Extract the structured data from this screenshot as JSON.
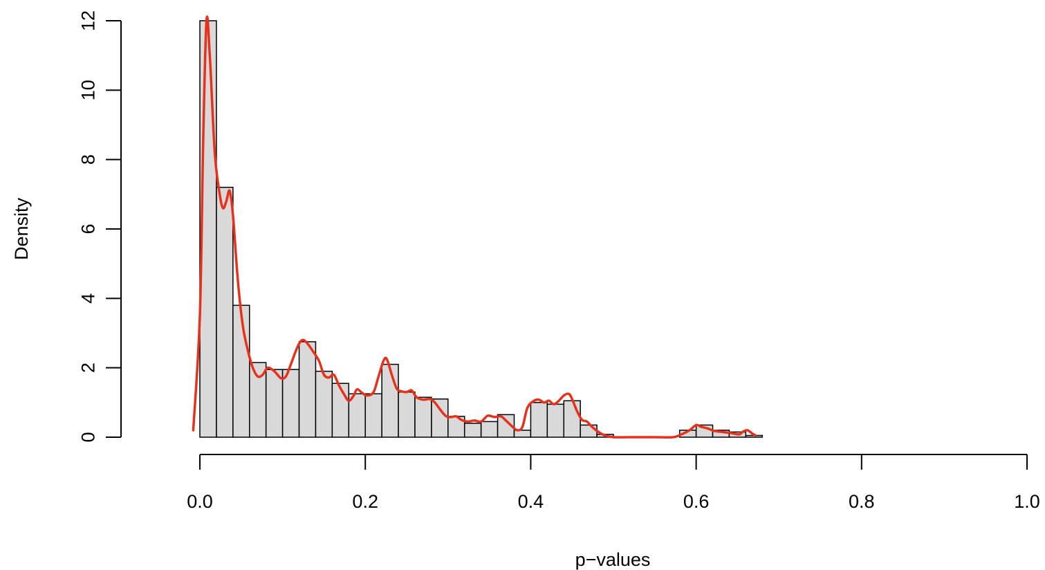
{
  "chart_data": {
    "type": "histogram",
    "title": "",
    "xlabel": "p−values",
    "ylabel": "Density",
    "xlim": [
      0,
      1
    ],
    "ylim": [
      0,
      12
    ],
    "grid": false,
    "x_ticks": [
      "0.0",
      "0.2",
      "0.4",
      "0.6",
      "0.8",
      "1.0"
    ],
    "y_ticks": [
      "0",
      "2",
      "4",
      "6",
      "8",
      "10",
      "12"
    ],
    "bin_width": 0.02,
    "bins": [
      {
        "x0": 0.0,
        "x1": 0.02,
        "density": 12.0
      },
      {
        "x0": 0.02,
        "x1": 0.04,
        "density": 7.2
      },
      {
        "x0": 0.04,
        "x1": 0.06,
        "density": 3.8
      },
      {
        "x0": 0.06,
        "x1": 0.08,
        "density": 2.15
      },
      {
        "x0": 0.08,
        "x1": 0.1,
        "density": 1.95
      },
      {
        "x0": 0.1,
        "x1": 0.12,
        "density": 1.95
      },
      {
        "x0": 0.12,
        "x1": 0.14,
        "density": 2.75
      },
      {
        "x0": 0.14,
        "x1": 0.16,
        "density": 1.9
      },
      {
        "x0": 0.16,
        "x1": 0.18,
        "density": 1.55
      },
      {
        "x0": 0.18,
        "x1": 0.2,
        "density": 1.25
      },
      {
        "x0": 0.2,
        "x1": 0.22,
        "density": 1.25
      },
      {
        "x0": 0.22,
        "x1": 0.24,
        "density": 2.1
      },
      {
        "x0": 0.24,
        "x1": 0.26,
        "density": 1.3
      },
      {
        "x0": 0.26,
        "x1": 0.28,
        "density": 1.15
      },
      {
        "x0": 0.28,
        "x1": 0.3,
        "density": 1.1
      },
      {
        "x0": 0.3,
        "x1": 0.32,
        "density": 0.6
      },
      {
        "x0": 0.32,
        "x1": 0.34,
        "density": 0.4
      },
      {
        "x0": 0.34,
        "x1": 0.36,
        "density": 0.45
      },
      {
        "x0": 0.36,
        "x1": 0.38,
        "density": 0.65
      },
      {
        "x0": 0.38,
        "x1": 0.4,
        "density": 0.2
      },
      {
        "x0": 0.4,
        "x1": 0.42,
        "density": 1.0
      },
      {
        "x0": 0.42,
        "x1": 0.44,
        "density": 0.95
      },
      {
        "x0": 0.44,
        "x1": 0.46,
        "density": 1.05
      },
      {
        "x0": 0.46,
        "x1": 0.48,
        "density": 0.35
      },
      {
        "x0": 0.48,
        "x1": 0.5,
        "density": 0.08
      },
      {
        "x0": 0.5,
        "x1": 0.52,
        "density": 0
      },
      {
        "x0": 0.52,
        "x1": 0.54,
        "density": 0
      },
      {
        "x0": 0.54,
        "x1": 0.56,
        "density": 0
      },
      {
        "x0": 0.56,
        "x1": 0.58,
        "density": 0
      },
      {
        "x0": 0.58,
        "x1": 0.6,
        "density": 0.2
      },
      {
        "x0": 0.6,
        "x1": 0.62,
        "density": 0.35
      },
      {
        "x0": 0.62,
        "x1": 0.64,
        "density": 0.2
      },
      {
        "x0": 0.64,
        "x1": 0.66,
        "density": 0.15
      },
      {
        "x0": 0.66,
        "x1": 0.68,
        "density": 0.05
      }
    ],
    "bar_color": "#d9d9d9",
    "bar_edge_color": "#000000",
    "density_curve": {
      "color": "#e8311a",
      "x": [
        -0.008,
        0.0,
        0.004,
        0.008,
        0.012,
        0.018,
        0.024,
        0.028,
        0.032,
        0.036,
        0.04,
        0.046,
        0.052,
        0.058,
        0.064,
        0.07,
        0.076,
        0.082,
        0.09,
        0.098,
        0.104,
        0.11,
        0.118,
        0.124,
        0.13,
        0.136,
        0.144,
        0.15,
        0.156,
        0.162,
        0.168,
        0.174,
        0.18,
        0.186,
        0.19,
        0.196,
        0.202,
        0.21,
        0.216,
        0.222,
        0.226,
        0.232,
        0.238,
        0.244,
        0.25,
        0.256,
        0.262,
        0.27,
        0.278,
        0.284,
        0.292,
        0.298,
        0.304,
        0.31,
        0.316,
        0.324,
        0.332,
        0.34,
        0.348,
        0.356,
        0.364,
        0.37,
        0.378,
        0.384,
        0.39,
        0.396,
        0.404,
        0.41,
        0.416,
        0.422,
        0.428,
        0.434,
        0.44,
        0.446,
        0.45,
        0.456,
        0.462,
        0.468,
        0.474,
        0.482,
        0.49,
        0.5,
        0.52,
        0.55,
        0.572,
        0.582,
        0.592,
        0.6,
        0.606,
        0.614,
        0.622,
        0.632,
        0.642,
        0.652,
        0.656,
        0.662,
        0.668,
        0.672
      ],
      "y": [
        0.2,
        3.5,
        8.5,
        12.0,
        11.0,
        8.2,
        7.0,
        6.6,
        6.8,
        7.1,
        6.4,
        4.5,
        3.2,
        2.5,
        2.0,
        1.75,
        1.8,
        2.0,
        1.9,
        1.7,
        1.75,
        2.1,
        2.6,
        2.8,
        2.7,
        2.5,
        2.2,
        1.8,
        1.72,
        1.8,
        1.5,
        1.25,
        1.05,
        1.2,
        1.38,
        1.28,
        1.2,
        1.3,
        1.75,
        2.2,
        2.25,
        1.8,
        1.4,
        1.32,
        1.3,
        1.35,
        1.15,
        1.08,
        1.1,
        1.0,
        0.75,
        0.6,
        0.58,
        0.6,
        0.5,
        0.45,
        0.48,
        0.45,
        0.62,
        0.58,
        0.6,
        0.48,
        0.3,
        0.2,
        0.3,
        0.85,
        1.05,
        1.08,
        1.0,
        1.05,
        0.95,
        1.05,
        1.2,
        1.25,
        1.1,
        0.75,
        0.5,
        0.45,
        0.3,
        0.15,
        0.05,
        0.0,
        0.0,
        0.0,
        0.0,
        0.08,
        0.2,
        0.35,
        0.3,
        0.25,
        0.18,
        0.15,
        0.12,
        0.08,
        0.15,
        0.2,
        0.1,
        0.05
      ]
    }
  }
}
